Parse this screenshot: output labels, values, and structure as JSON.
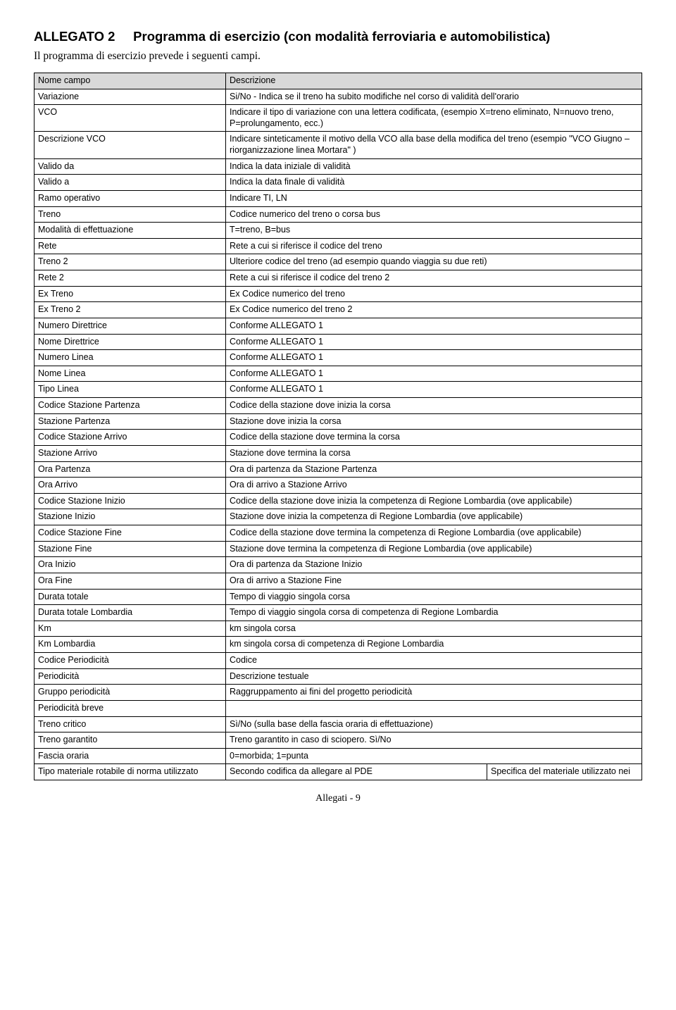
{
  "heading_part1": "ALLEGATO 2",
  "heading_part2": "Programma di esercizio (con modalità ferroviaria e automobilistica)",
  "intro": "Il programma di esercizio prevede i seguenti campi.",
  "header_col1": "Nome campo",
  "header_col2": "Descrizione",
  "rows": [
    {
      "c1": "Variazione",
      "c2": "Si/No - Indica se il treno ha subito modifiche nel corso di validità dell'orario"
    },
    {
      "c1": "VCO",
      "c2": "Indicare il tipo di variazione con una lettera codificata, (esempio X=treno eliminato, N=nuovo treno, P=prolungamento, ecc.)"
    },
    {
      "c1": "Descrizione VCO",
      "c2": "Indicare sinteticamente il motivo della VCO alla base della modifica del treno (esempio \"VCO Giugno – riorganizzazione linea Mortara\" )"
    },
    {
      "c1": "Valido da",
      "c2": "Indica la data iniziale di validità"
    },
    {
      "c1": "Valido a",
      "c2": "Indica la data finale di validità"
    },
    {
      "c1": "Ramo operativo",
      "c2": "Indicare TI, LN"
    },
    {
      "c1": "Treno",
      "c2": "Codice numerico del treno o corsa bus"
    },
    {
      "c1": "Modalità di effettuazione",
      "c2": "T=treno, B=bus"
    },
    {
      "c1": "Rete",
      "c2": "Rete a cui si riferisce il codice del treno"
    },
    {
      "c1": "Treno 2",
      "c2": "Ulteriore codice del treno (ad esempio quando viaggia su due reti)"
    },
    {
      "c1": "Rete 2",
      "c2": "Rete a cui si riferisce il codice del treno 2"
    },
    {
      "c1": "Ex Treno",
      "c2": "Ex Codice numerico del treno"
    },
    {
      "c1": "Ex Treno 2",
      "c2": "Ex Codice numerico del treno 2"
    },
    {
      "c1": "Numero Direttrice",
      "c2": "Conforme ALLEGATO 1"
    },
    {
      "c1": "Nome Direttrice",
      "c2": "Conforme ALLEGATO 1"
    },
    {
      "c1": "Numero Linea",
      "c2": "Conforme ALLEGATO 1"
    },
    {
      "c1": "Nome Linea",
      "c2": "Conforme ALLEGATO 1"
    },
    {
      "c1": "Tipo Linea",
      "c2": "Conforme ALLEGATO 1"
    },
    {
      "c1": "Codice Stazione Partenza",
      "c2": "Codice della stazione dove inizia la corsa"
    },
    {
      "c1": "Stazione Partenza",
      "c2": "Stazione dove inizia la corsa"
    },
    {
      "c1": "Codice Stazione Arrivo",
      "c2": "Codice della stazione dove termina la corsa"
    },
    {
      "c1": "Stazione Arrivo",
      "c2": "Stazione dove termina la corsa"
    },
    {
      "c1": "Ora Partenza",
      "c2": "Ora di partenza da Stazione Partenza"
    },
    {
      "c1": "Ora Arrivo",
      "c2": "Ora di arrivo a Stazione Arrivo"
    },
    {
      "c1": "Codice Stazione Inizio",
      "c2": "Codice della stazione dove inizia la competenza di Regione Lombardia (ove applicabile)"
    },
    {
      "c1": "Stazione Inizio",
      "c2": "Stazione dove inizia la competenza di Regione Lombardia (ove applicabile)"
    },
    {
      "c1": "Codice Stazione Fine",
      "c2": "Codice della stazione dove termina la competenza di Regione Lombardia (ove applicabile)"
    },
    {
      "c1": "Stazione Fine",
      "c2": "Stazione dove termina la competenza di Regione Lombardia (ove applicabile)"
    },
    {
      "c1": "Ora Inizio",
      "c2": "Ora di partenza da Stazione Inizio"
    },
    {
      "c1": "Ora Fine",
      "c2": "Ora di arrivo a Stazione Fine"
    },
    {
      "c1": "Durata totale",
      "c2": "Tempo di viaggio singola corsa"
    },
    {
      "c1": "Durata totale Lombardia",
      "c2": "Tempo di viaggio singola corsa di competenza di Regione Lombardia"
    },
    {
      "c1": "Km",
      "c2": "km singola corsa"
    },
    {
      "c1": "Km Lombardia",
      "c2": "km singola corsa di competenza di Regione Lombardia"
    },
    {
      "c1": "Codice Periodicità",
      "c2": "Codice"
    },
    {
      "c1": "Periodicità",
      "c2": "Descrizione testuale"
    },
    {
      "c1": "Gruppo periodicità",
      "c2": "Raggruppamento ai fini del progetto periodicità"
    },
    {
      "c1": "Periodicità breve",
      "c2": ""
    },
    {
      "c1": "Treno critico",
      "c2": "Sì/No (sulla base della fascia oraria di effettuazione)"
    },
    {
      "c1": "Treno garantito",
      "c2": "Treno garantito in caso di sciopero. Sì/No"
    },
    {
      "c1": "Fascia oraria",
      "c2": "0=morbida; 1=punta"
    }
  ],
  "last_row": {
    "c1": "Tipo materiale rotabile di norma utilizzato",
    "c2": "Secondo codifica da allegare al PDE",
    "c3": "Specifica del materiale utilizzato nei"
  },
  "footer": "Allegati - 9"
}
